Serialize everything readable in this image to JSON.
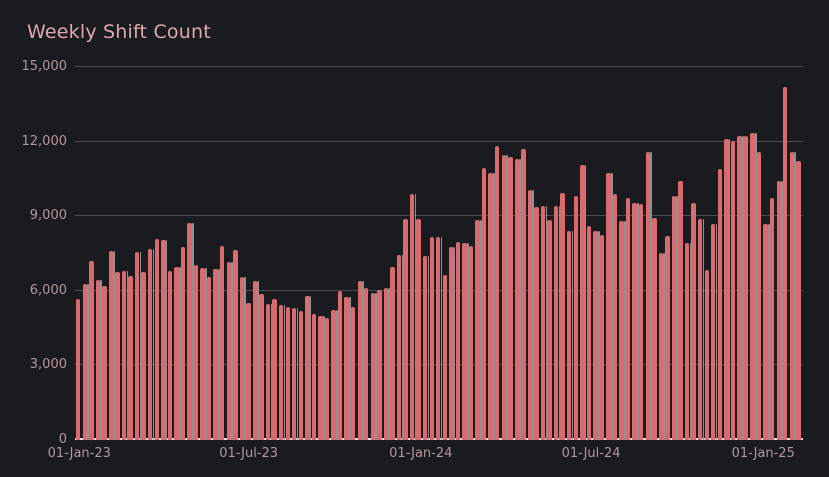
{
  "title": "Weekly Shift Count",
  "colors": {
    "background": "#1a1b1f",
    "bar": "#d96b6e",
    "bar_shadow_stripe": "#8c9298",
    "gridline": "#4a4a51",
    "axis_baseline": "#dcdcdf",
    "title_text": "#dfa8af",
    "tick_text": "#b4969b"
  },
  "y_axis": {
    "max": 15000,
    "ticks": [
      {
        "label": "0",
        "value": 0
      },
      {
        "label": "3,000",
        "value": 3000
      },
      {
        "label": "6,000",
        "value": 6000
      },
      {
        "label": "9,000",
        "value": 9000
      },
      {
        "label": "12,000",
        "value": 12000
      },
      {
        "label": "15,000",
        "value": 15000
      }
    ]
  },
  "x_axis": {
    "ticks": [
      {
        "label": "01-Jan-23",
        "week_offset": 0
      },
      {
        "label": "01-Jul-23",
        "week_offset": 25.86
      },
      {
        "label": "01-Jan-24",
        "week_offset": 52.14
      },
      {
        "label": "01-Jul-24",
        "week_offset": 78.14
      },
      {
        "label": "01-Jan-25",
        "week_offset": 104.43
      }
    ]
  },
  "chart_data": {
    "type": "bar",
    "title": "Weekly Shift Count",
    "xlabel": "",
    "ylabel": "",
    "ylim": [
      0,
      15000
    ],
    "frequency": "weekly",
    "grid": "horizontal",
    "legend": "none",
    "dates": [
      "2023-01-01",
      "2023-01-08",
      "2023-01-15",
      "2023-01-22",
      "2023-01-29",
      "2023-02-05",
      "2023-02-12",
      "2023-02-19",
      "2023-02-26",
      "2023-03-05",
      "2023-03-12",
      "2023-03-19",
      "2023-03-26",
      "2023-04-02",
      "2023-04-09",
      "2023-04-16",
      "2023-04-23",
      "2023-04-30",
      "2023-05-07",
      "2023-05-14",
      "2023-05-21",
      "2023-05-28",
      "2023-06-04",
      "2023-06-11",
      "2023-06-18",
      "2023-06-25",
      "2023-07-02",
      "2023-07-09",
      "2023-07-16",
      "2023-07-23",
      "2023-07-30",
      "2023-08-06",
      "2023-08-13",
      "2023-08-20",
      "2023-08-27",
      "2023-09-03",
      "2023-09-10",
      "2023-09-17",
      "2023-09-24",
      "2023-10-01",
      "2023-10-08",
      "2023-10-15",
      "2023-10-22",
      "2023-10-29",
      "2023-11-05",
      "2023-11-12",
      "2023-11-19",
      "2023-11-26",
      "2023-12-03",
      "2023-12-10",
      "2023-12-17",
      "2023-12-24",
      "2023-12-31",
      "2024-01-07",
      "2024-01-14",
      "2024-01-21",
      "2024-01-28",
      "2024-02-04",
      "2024-02-11",
      "2024-02-18",
      "2024-02-25",
      "2024-03-03",
      "2024-03-10",
      "2024-03-17",
      "2024-03-24",
      "2024-03-31",
      "2024-04-07",
      "2024-04-14",
      "2024-04-21",
      "2024-04-28",
      "2024-05-05",
      "2024-05-12",
      "2024-05-19",
      "2024-05-26",
      "2024-06-02",
      "2024-06-09",
      "2024-06-16",
      "2024-06-23",
      "2024-06-30",
      "2024-07-07",
      "2024-07-14",
      "2024-07-21",
      "2024-07-28",
      "2024-08-04",
      "2024-08-11",
      "2024-08-18",
      "2024-08-25",
      "2024-09-01",
      "2024-09-08",
      "2024-09-15",
      "2024-09-22",
      "2024-09-29",
      "2024-10-06",
      "2024-10-13",
      "2024-10-20",
      "2024-10-27",
      "2024-11-03",
      "2024-11-10",
      "2024-11-17",
      "2024-11-24",
      "2024-12-01",
      "2024-12-08",
      "2024-12-15",
      "2024-12-22",
      "2024-12-29",
      "2025-01-05",
      "2025-01-12",
      "2025-01-19",
      "2025-01-26",
      "2025-02-02",
      "2025-02-09"
    ],
    "values": [
      5670,
      6270,
      7210,
      6430,
      6190,
      7600,
      6770,
      6810,
      6590,
      7560,
      6770,
      7670,
      8080,
      8040,
      6810,
      6970,
      7770,
      8710,
      7040,
      6930,
      6570,
      6860,
      7800,
      7170,
      7640,
      6540,
      5510,
      6380,
      5880,
      5480,
      5670,
      5440,
      5350,
      5310,
      5170,
      5800,
      5080,
      5000,
      4900,
      5230,
      6000,
      5740,
      5360,
      6410,
      6100,
      5900,
      6030,
      6120,
      6970,
      7440,
      8880,
      9890,
      8880,
      7410,
      8150,
      8170,
      6640,
      7750,
      7970,
      7930,
      7800,
      8840,
      10920,
      10750,
      11820,
      11460,
      11390,
      11320,
      11690,
      10050,
      9380,
      9410,
      8840,
      9410,
      9950,
      8400,
      9810,
      11060,
      8590,
      8390,
      8250,
      10750,
      9890,
      8790,
      9720,
      9540,
      9490,
      11590,
      8930,
      7520,
      8220,
      9810,
      10410,
      7920,
      9520,
      8900,
      6850,
      8670,
      10880,
      12100,
      12020,
      12220,
      12220,
      12350,
      11570,
      8690,
      9720,
      10400,
      14200,
      11570,
      11230
    ]
  }
}
